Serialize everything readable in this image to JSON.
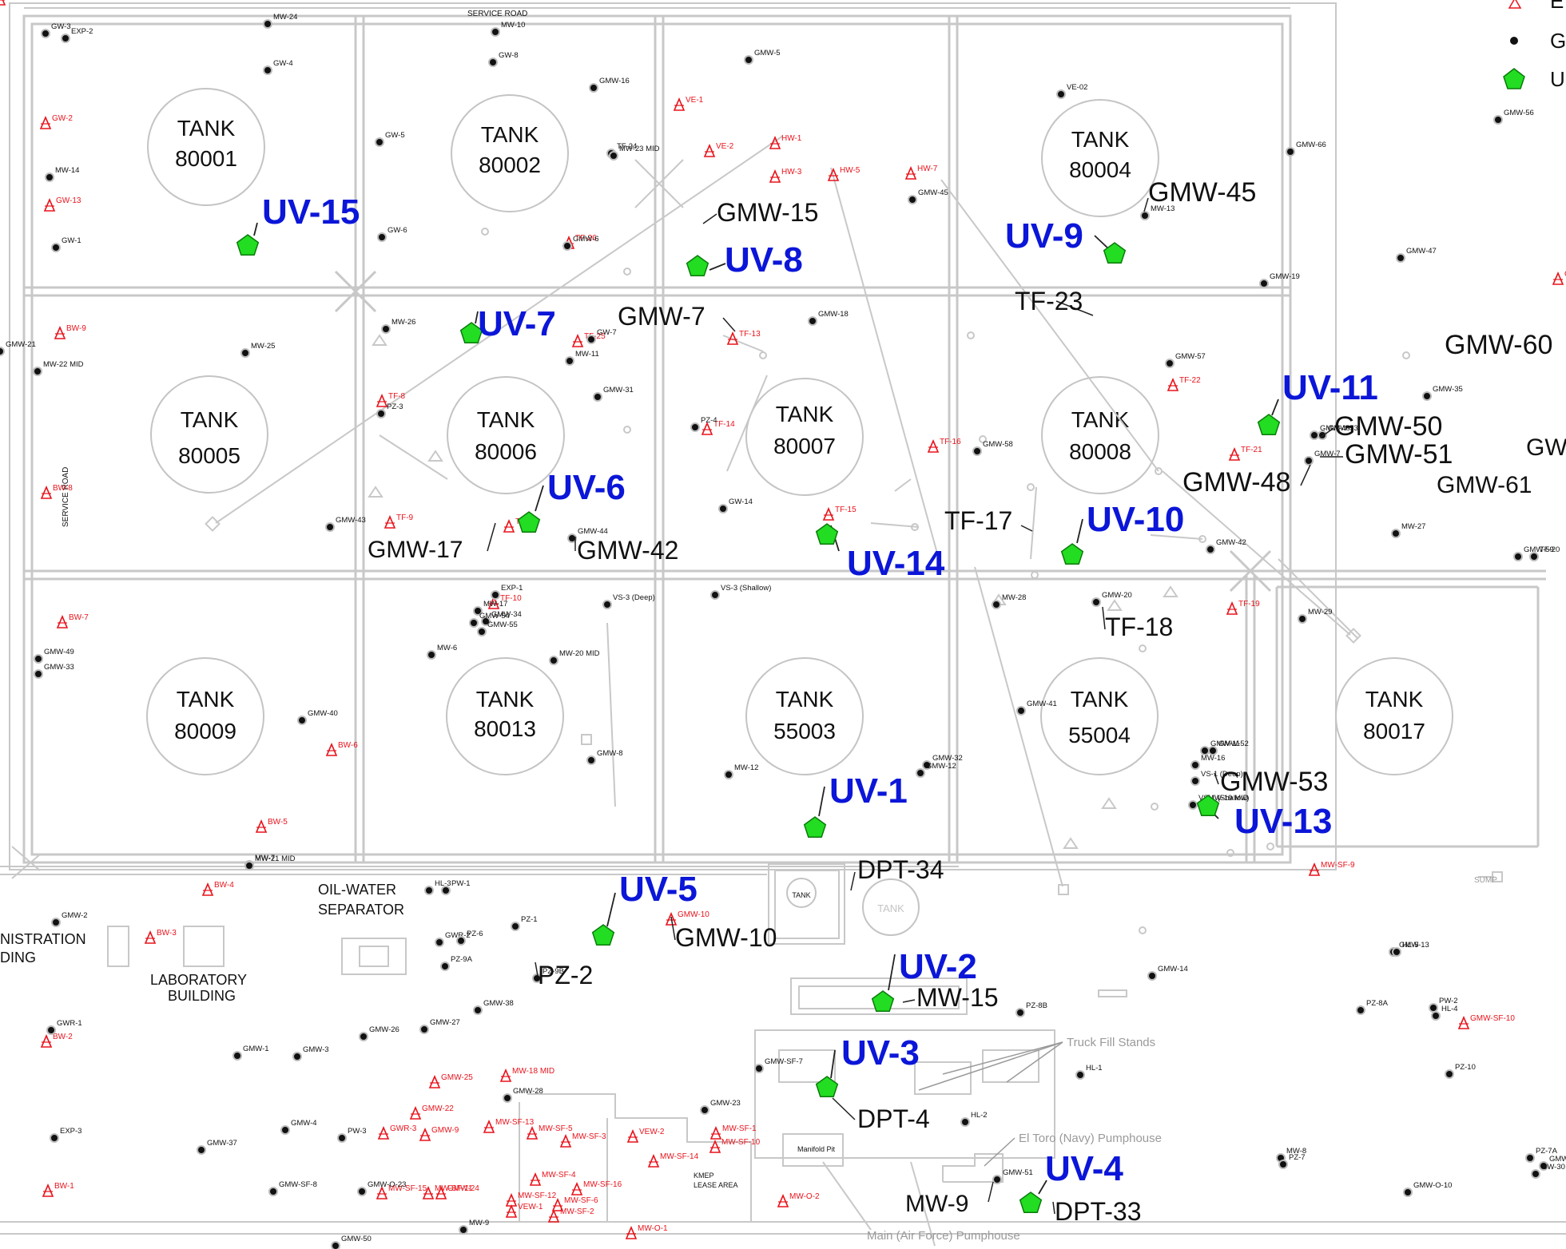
{
  "colors": {
    "extraction_well": "#e8141c",
    "groundwater_well": "#111111",
    "uv_marker_fill": "#22dd22",
    "uv_marker_stroke": "#0a7a0a",
    "uv_label": "#0b16d8",
    "infrastructure_line": "#c8c8c8"
  },
  "icons": {
    "extraction_well": "red-triangle-well-icon",
    "groundwater_well": "black-circle-well-icon",
    "uv_point": "green-pentagon-icon"
  },
  "legend": {
    "items": [
      {
        "label": "E",
        "icon": "red-triangle-well-icon"
      },
      {
        "label": "G",
        "icon": "black-circle-well-icon"
      },
      {
        "label": "U",
        "icon": "green-pentagon-icon"
      }
    ]
  },
  "tanks": [
    {
      "line1": "TANK",
      "line2": "80001"
    },
    {
      "line1": "TANK",
      "line2": "80002"
    },
    {
      "line1": "TANK",
      "line2": "80004"
    },
    {
      "line1": "TANK",
      "line2": "80005"
    },
    {
      "line1": "TANK",
      "line2": "80006"
    },
    {
      "line1": "TANK",
      "line2": "80007"
    },
    {
      "line1": "TANK",
      "line2": "80008"
    },
    {
      "line1": "TANK",
      "line2": "80009"
    },
    {
      "line1": "TANK",
      "line2": "80013"
    },
    {
      "line1": "TANK",
      "line2": "55003"
    },
    {
      "line1": "TANK",
      "line2": "55004"
    },
    {
      "line1": "TANK",
      "line2": "80017"
    }
  ],
  "small_tanks": [
    "TANK",
    "TANK"
  ],
  "uv_points": [
    "UV-15",
    "UV-8",
    "UV-9",
    "UV-7",
    "UV-6",
    "UV-11",
    "UV-10",
    "UV-14",
    "UV-1",
    "UV-13",
    "UV-5",
    "UV-2",
    "UV-3",
    "UV-4"
  ],
  "callouts": [
    "GMW-45",
    "GMW-15",
    "TF-23",
    "GMW-7",
    "GMW-60",
    "GMW-50",
    "GMW-51",
    "GMW-48",
    "GMW-61",
    "GW",
    "TF-17",
    "GMW-17",
    "GMW-42",
    "TF-18",
    "GMW-53",
    "DPT-34",
    "GMW-10",
    "PZ-2",
    "MW-15",
    "DPT-4",
    "MW-9",
    "DPT-33"
  ],
  "areas": {
    "road_top": "SERVICE     ROAD",
    "road_left": "SERVICE    ROAD",
    "oil_water_line1": "OIL-WATER",
    "oil_water_line2": "SEPARATOR",
    "admin_line1": "NISTRATION",
    "admin_line2": "DING",
    "lab_line1": "LABORATORY",
    "lab_line2": "BUILDING",
    "truck_fill": "Truck Fill Stands",
    "el_toro": "El Toro (Navy) Pumphouse",
    "main_af": "Main (Air Force) Pumphouse",
    "manifold": "Manifold Pit",
    "kmep_line1": "KMEP",
    "kmep_line2": "LEASE AREA",
    "sump": "SUMP"
  },
  "red_wells": [
    "GW-2",
    "GW-13",
    "BW-9",
    "TF-8",
    "BW-8",
    "BW-7",
    "BW-6",
    "BW-5",
    "BW-4",
    "BW-3",
    "BW-2",
    "BW-1",
    "VE-1",
    "VE-2",
    "HW-1",
    "HW-3",
    "HW-5",
    "HW-7",
    "TF-26",
    "TF-25",
    "TF-13",
    "TF-14",
    "TF-9",
    "TF-11",
    "TF-10",
    "TF-15",
    "TF-16",
    "TF-22",
    "TF-21",
    "TF-19",
    "GMW-10",
    "GMW-25",
    "MW-18 MID",
    "GMW-22",
    "GWR-3",
    "GMW-9",
    "MW-SF-13",
    "MW-SF-5",
    "MW-SF-3",
    "VEW-2",
    "MW-SF-1",
    "MW-SF-10",
    "MW-SF-4",
    "MW-SF-14",
    "MW-SF-16",
    "MW-SF-15",
    "MW-SF-11",
    "GMW-24",
    "MW-SF-12",
    "MW-SF-6",
    "VEW-1",
    "MW-SF-2",
    "MW-O-1",
    "MW-O-2",
    "MW-SF-9",
    "GMW-SF-10",
    "GMW-SF-9",
    "GW-1"
  ],
  "black_wells": [
    "GW-3",
    "EXP-2",
    "MW-24",
    "MW-10",
    "GW-8",
    "GW-4",
    "GMW-5",
    "GMW-16",
    "GW-5",
    "MW-14",
    "GW-1",
    "GW-6",
    "TF-24",
    "MW-23 MID",
    "VE-02",
    "GMW-56",
    "GMW-66",
    "MW-13",
    "GMW-45",
    "GMW-6",
    "GMW-21",
    "MW-22 MID",
    "MW-25",
    "MW-26",
    "GW-7",
    "PZ-3",
    "MW-11",
    "GMW-31",
    "PZ-4",
    "GMW-18",
    "GMW-19",
    "GMW-47",
    "GMW-57",
    "GMW-35",
    "GMW-58",
    "GW-14",
    "GMW-43",
    "GMW-44",
    "MW-27",
    "GMW-42",
    "GMW-59",
    "TF-20",
    "EXP-1",
    "MW-17",
    "GMW-34",
    "GMW-54",
    "GMW-55",
    "VS-3 (Deep)",
    "VS-3 (Shallow)",
    "MW-28",
    "GMW-20",
    "MW-29",
    "GMW-49",
    "GMW-33",
    "MW-6",
    "MW-20 MID",
    "GMW-40",
    "GMW-41",
    "GMW-8",
    "GMW-32",
    "MW-12",
    "GMW-12",
    "GMW-11",
    "GMW-52",
    "MW-16",
    "VS-1 (Deep)",
    "VS-1 (Shallow)",
    "MW-19 MID",
    "MW-7",
    "MW-21 MID",
    "HL-3",
    "PW-1",
    "GMW-2",
    "GWR-2",
    "PZ-6",
    "PZ-1",
    "PZ-9A",
    "PZ-9B",
    "GMW-13",
    "HL-5",
    "GMW-14",
    "GMW-38",
    "PZ-8B",
    "PZ-8A",
    "PW-2",
    "HL-4",
    "GWR-1",
    "GMW-26",
    "GMW-27",
    "GMW-1",
    "GMW-3",
    "GMW-SF-7",
    "HL-1",
    "PZ-10",
    "GMW-28",
    "GMW-23",
    "GMW-4",
    "PW-3",
    "HL-2",
    "EXP-3",
    "GMW-37",
    "MW-8",
    "PZ-7",
    "PZ-7A",
    "GMW-29",
    "GW-30",
    "GMW-SF-8",
    "GMW-O-23",
    "GMW-O-10",
    "MW-9",
    "GMW-50",
    "GMW-51",
    "GMW-48",
    "GMW-53",
    "GMW-7"
  ]
}
